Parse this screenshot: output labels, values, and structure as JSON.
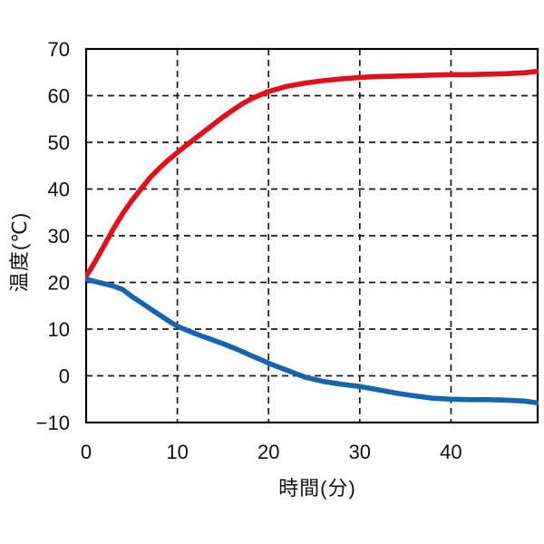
{
  "chart_data": {
    "type": "line",
    "title": "",
    "xlabel": "時間(分)",
    "ylabel": "温度(℃)",
    "xlim": [
      0,
      49.5
    ],
    "ylim": [
      -10,
      70
    ],
    "xticks": [
      0,
      10,
      20,
      30,
      40
    ],
    "yticks": [
      -10,
      0,
      10,
      20,
      30,
      40,
      50,
      60,
      70
    ],
    "grid": "dashed",
    "legend_position": "none",
    "x": [
      0,
      1,
      2,
      3,
      4,
      5,
      6,
      7,
      8,
      9,
      10,
      11,
      12,
      13,
      14,
      15,
      16,
      17,
      18,
      19,
      20,
      22,
      24,
      26,
      28,
      30,
      32,
      34,
      36,
      38,
      40,
      42,
      44,
      46,
      48,
      49.5
    ],
    "series": [
      {
        "name": "red-rising-temperature-curve",
        "color": "#e1101a",
        "values": [
          21.3,
          24.5,
          28,
          31.5,
          34.7,
          37.5,
          40,
          42.4,
          44.4,
          46.2,
          47.8,
          49.4,
          50.9,
          52.4,
          53.9,
          55.4,
          56.8,
          58.1,
          59.2,
          60.1,
          60.9,
          62.0,
          62.7,
          63.2,
          63.6,
          63.9,
          64.1,
          64.2,
          64.3,
          64.4,
          64.5,
          64.5,
          64.6,
          64.7,
          64.9,
          65.2
        ]
      },
      {
        "name": "blue-falling-temperature-curve",
        "color": "#1666af",
        "values": [
          20.7,
          20.2,
          19.7,
          19.2,
          18.5,
          17.0,
          15.7,
          14.4,
          13.1,
          11.8,
          10.6,
          9.8,
          9.0,
          8.3,
          7.6,
          6.9,
          6.1,
          5.3,
          4.4,
          3.6,
          2.7,
          1.2,
          -0.3,
          -1.2,
          -1.8,
          -2.3,
          -3.0,
          -3.7,
          -4.3,
          -4.8,
          -5.0,
          -5.1,
          -5.1,
          -5.2,
          -5.4,
          -5.8
        ]
      }
    ],
    "style": {
      "grid_color": "#1a1a1a",
      "border_color": "#000000",
      "background": "#ffffff",
      "line_width": 5.6,
      "grid_dash": "7 5"
    }
  }
}
